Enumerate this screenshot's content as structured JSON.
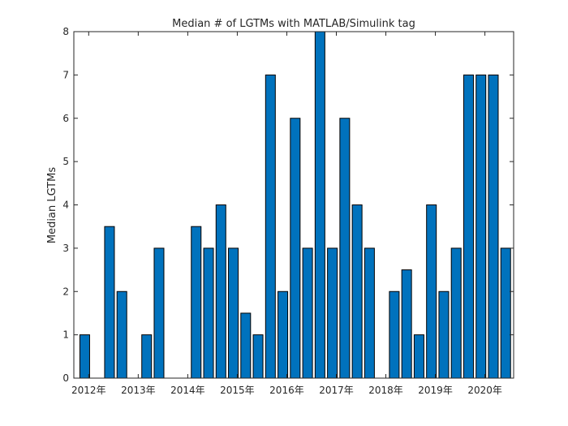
{
  "chart_data": {
    "type": "bar",
    "title": "Median # of LGTMs with MATLAB/Simulink tag",
    "xlabel": "",
    "ylabel": "Median LGTMs",
    "ylim": [
      0,
      8
    ],
    "yticks": [
      0,
      1,
      2,
      3,
      4,
      5,
      6,
      7,
      8
    ],
    "xtick_labels": [
      {
        "label": "2012年",
        "x": 2012
      },
      {
        "label": "2013年",
        "x": 2013
      },
      {
        "label": "2014年",
        "x": 2014
      },
      {
        "label": "2015年",
        "x": 2015
      },
      {
        "label": "2016年",
        "x": 2016
      },
      {
        "label": "2017年",
        "x": 2017
      },
      {
        "label": "2018年",
        "x": 2018
      },
      {
        "label": "2019年",
        "x": 2019
      },
      {
        "label": "2020年",
        "x": 2020
      }
    ],
    "xlim": [
      2011.7,
      2020.58
    ],
    "bar_color": "#0072bd",
    "bars": [
      {
        "x": 2011.92,
        "value": 1
      },
      {
        "x": 2012.17,
        "value": 0
      },
      {
        "x": 2012.42,
        "value": 3.5
      },
      {
        "x": 2012.67,
        "value": 2
      },
      {
        "x": 2012.92,
        "value": 0
      },
      {
        "x": 2013.17,
        "value": 1
      },
      {
        "x": 2013.42,
        "value": 3
      },
      {
        "x": 2013.67,
        "value": 0
      },
      {
        "x": 2013.92,
        "value": 0
      },
      {
        "x": 2014.17,
        "value": 3.5
      },
      {
        "x": 2014.42,
        "value": 3
      },
      {
        "x": 2014.67,
        "value": 4
      },
      {
        "x": 2014.92,
        "value": 3
      },
      {
        "x": 2015.17,
        "value": 1.5
      },
      {
        "x": 2015.42,
        "value": 1
      },
      {
        "x": 2015.67,
        "value": 7
      },
      {
        "x": 2015.92,
        "value": 2
      },
      {
        "x": 2016.17,
        "value": 6
      },
      {
        "x": 2016.42,
        "value": 3
      },
      {
        "x": 2016.67,
        "value": 8
      },
      {
        "x": 2016.92,
        "value": 3
      },
      {
        "x": 2017.17,
        "value": 6
      },
      {
        "x": 2017.42,
        "value": 4
      },
      {
        "x": 2017.67,
        "value": 3
      },
      {
        "x": 2017.92,
        "value": 0
      },
      {
        "x": 2018.17,
        "value": 2
      },
      {
        "x": 2018.42,
        "value": 2.5
      },
      {
        "x": 2018.67,
        "value": 1
      },
      {
        "x": 2018.92,
        "value": 4
      },
      {
        "x": 2019.17,
        "value": 2
      },
      {
        "x": 2019.42,
        "value": 3
      },
      {
        "x": 2019.67,
        "value": 7
      },
      {
        "x": 2019.92,
        "value": 7
      },
      {
        "x": 2020.17,
        "value": 7
      },
      {
        "x": 2020.42,
        "value": 3
      }
    ],
    "grid": false,
    "box": true
  }
}
